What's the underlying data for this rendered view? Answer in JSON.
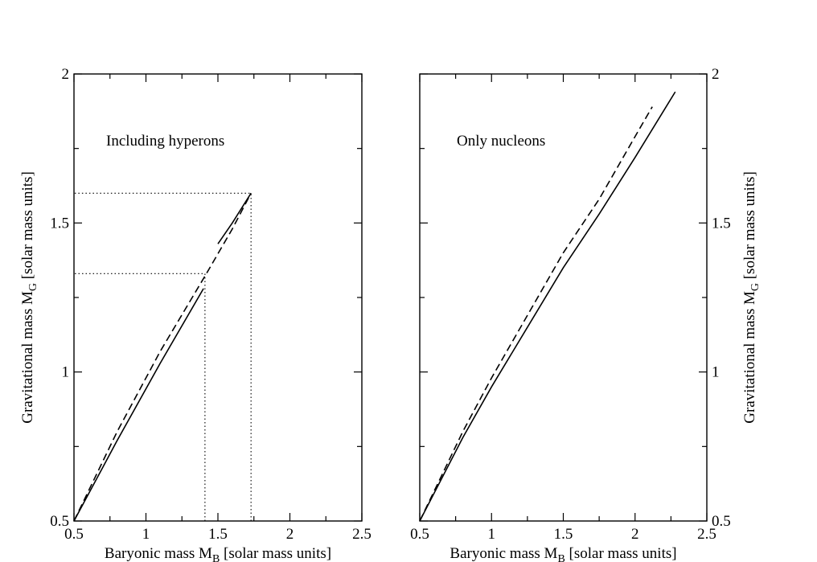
{
  "chart_data": [
    {
      "type": "line",
      "annotation": "Including hyperons",
      "xlabel": "Baryonic mass M",
      "xlabel_sub": "B",
      "xlabel_unit": " [solar mass units]",
      "ylabel": "Gravitational mass M",
      "ylabel_sub": "G",
      "ylabel_unit": " [solar mass units]",
      "xlim": [
        0.5,
        2.5
      ],
      "ylim": [
        0.5,
        2.0
      ],
      "x_ticks": [
        0.5,
        1.0,
        1.5,
        2.0,
        2.5
      ],
      "x_tick_labels": [
        "0.5",
        "1",
        "1.5",
        "2",
        "2.5"
      ],
      "y_ticks": [
        0.5,
        1.0,
        1.5,
        2.0
      ],
      "y_tick_labels": [
        "0.5",
        "1",
        "1.5",
        "2"
      ],
      "y_axis_side": "left",
      "series": [
        {
          "style": "solid",
          "segments": [
            {
              "x": [
                0.5,
                0.8,
                1.1,
                1.4
              ],
              "y": [
                0.5,
                0.77,
                1.03,
                1.28
              ]
            },
            {
              "x": [
                1.5,
                1.6,
                1.73
              ],
              "y": [
                1.43,
                1.5,
                1.6
              ]
            }
          ]
        },
        {
          "style": "dashed",
          "segments": [
            {
              "x": [
                0.5,
                0.8,
                1.1,
                1.42,
                1.6,
                1.73
              ],
              "y": [
                0.5,
                0.8,
                1.07,
                1.33,
                1.48,
                1.6
              ]
            }
          ]
        }
      ],
      "guides": [
        {
          "x": 1.41,
          "y": 1.33
        },
        {
          "x": 1.73,
          "y": 1.6
        }
      ]
    },
    {
      "type": "line",
      "annotation": "Only nucleons",
      "xlabel": "Baryonic mass M",
      "xlabel_sub": "B",
      "xlabel_unit": " [solar mass units]",
      "ylabel": "Gravitational mass M",
      "ylabel_sub": "G",
      "ylabel_unit": " [solar mass units]",
      "xlim": [
        0.5,
        2.5
      ],
      "ylim": [
        0.5,
        2.0
      ],
      "x_ticks": [
        0.5,
        1.0,
        1.5,
        2.0,
        2.5
      ],
      "x_tick_labels": [
        "0.5",
        "1",
        "1.5",
        "2",
        "2.5"
      ],
      "y_ticks": [
        0.5,
        1.0,
        1.5,
        2.0
      ],
      "y_tick_labels": [
        "0.5",
        "1",
        "1.5",
        "2"
      ],
      "y_axis_side": "right",
      "series": [
        {
          "style": "solid",
          "segments": [
            {
              "x": [
                0.5,
                0.8,
                1.0,
                1.25,
                1.5,
                1.75,
                2.0,
                2.28
              ],
              "y": [
                0.5,
                0.78,
                0.95,
                1.15,
                1.35,
                1.53,
                1.72,
                1.94
              ]
            }
          ]
        },
        {
          "style": "dashed",
          "segments": [
            {
              "x": [
                0.5,
                0.8,
                1.0,
                1.25,
                1.5,
                1.75,
                2.0,
                2.12
              ],
              "y": [
                0.5,
                0.8,
                0.98,
                1.19,
                1.4,
                1.58,
                1.79,
                1.89
              ]
            }
          ]
        }
      ],
      "guides": []
    }
  ]
}
